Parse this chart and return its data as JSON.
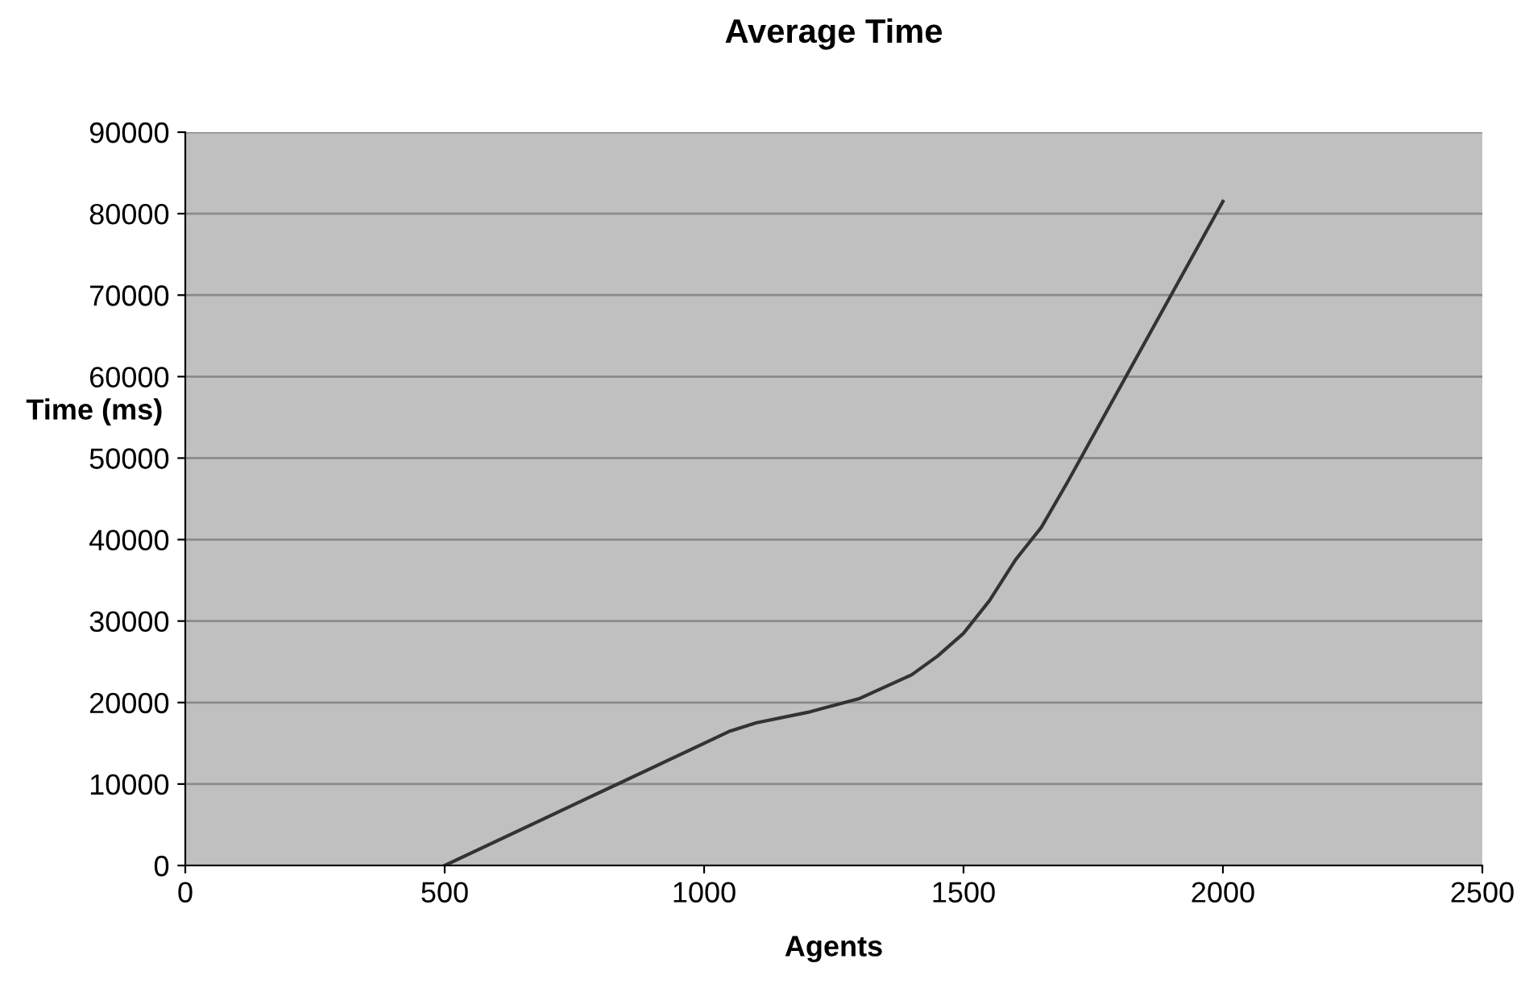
{
  "chart_data": {
    "type": "line",
    "title": "Average Time",
    "xlabel": "Agents",
    "ylabel": "Time (ms)",
    "x": [
      500,
      750,
      1000,
      1050,
      1100,
      1200,
      1300,
      1400,
      1450,
      1500,
      1550,
      1600,
      1650,
      1700,
      1800,
      1900,
      2000
    ],
    "series": [
      {
        "color": "#333333",
        "values": [
          0,
          7500,
          15000,
          16500,
          17500,
          18800,
          20500,
          23400,
          25700,
          28500,
          32500,
          37500,
          41500,
          47000,
          58500,
          70000,
          81500
        ]
      }
    ],
    "xlim": [
      0,
      2500
    ],
    "xticks": [
      0,
      500,
      1000,
      1500,
      2000,
      2500
    ],
    "ylim": [
      0,
      90000
    ],
    "yticks": [
      0,
      10000,
      20000,
      30000,
      40000,
      50000,
      60000,
      70000,
      80000,
      90000
    ],
    "grid": "y",
    "marker": "none",
    "line_style": "solid",
    "legend": false
  }
}
